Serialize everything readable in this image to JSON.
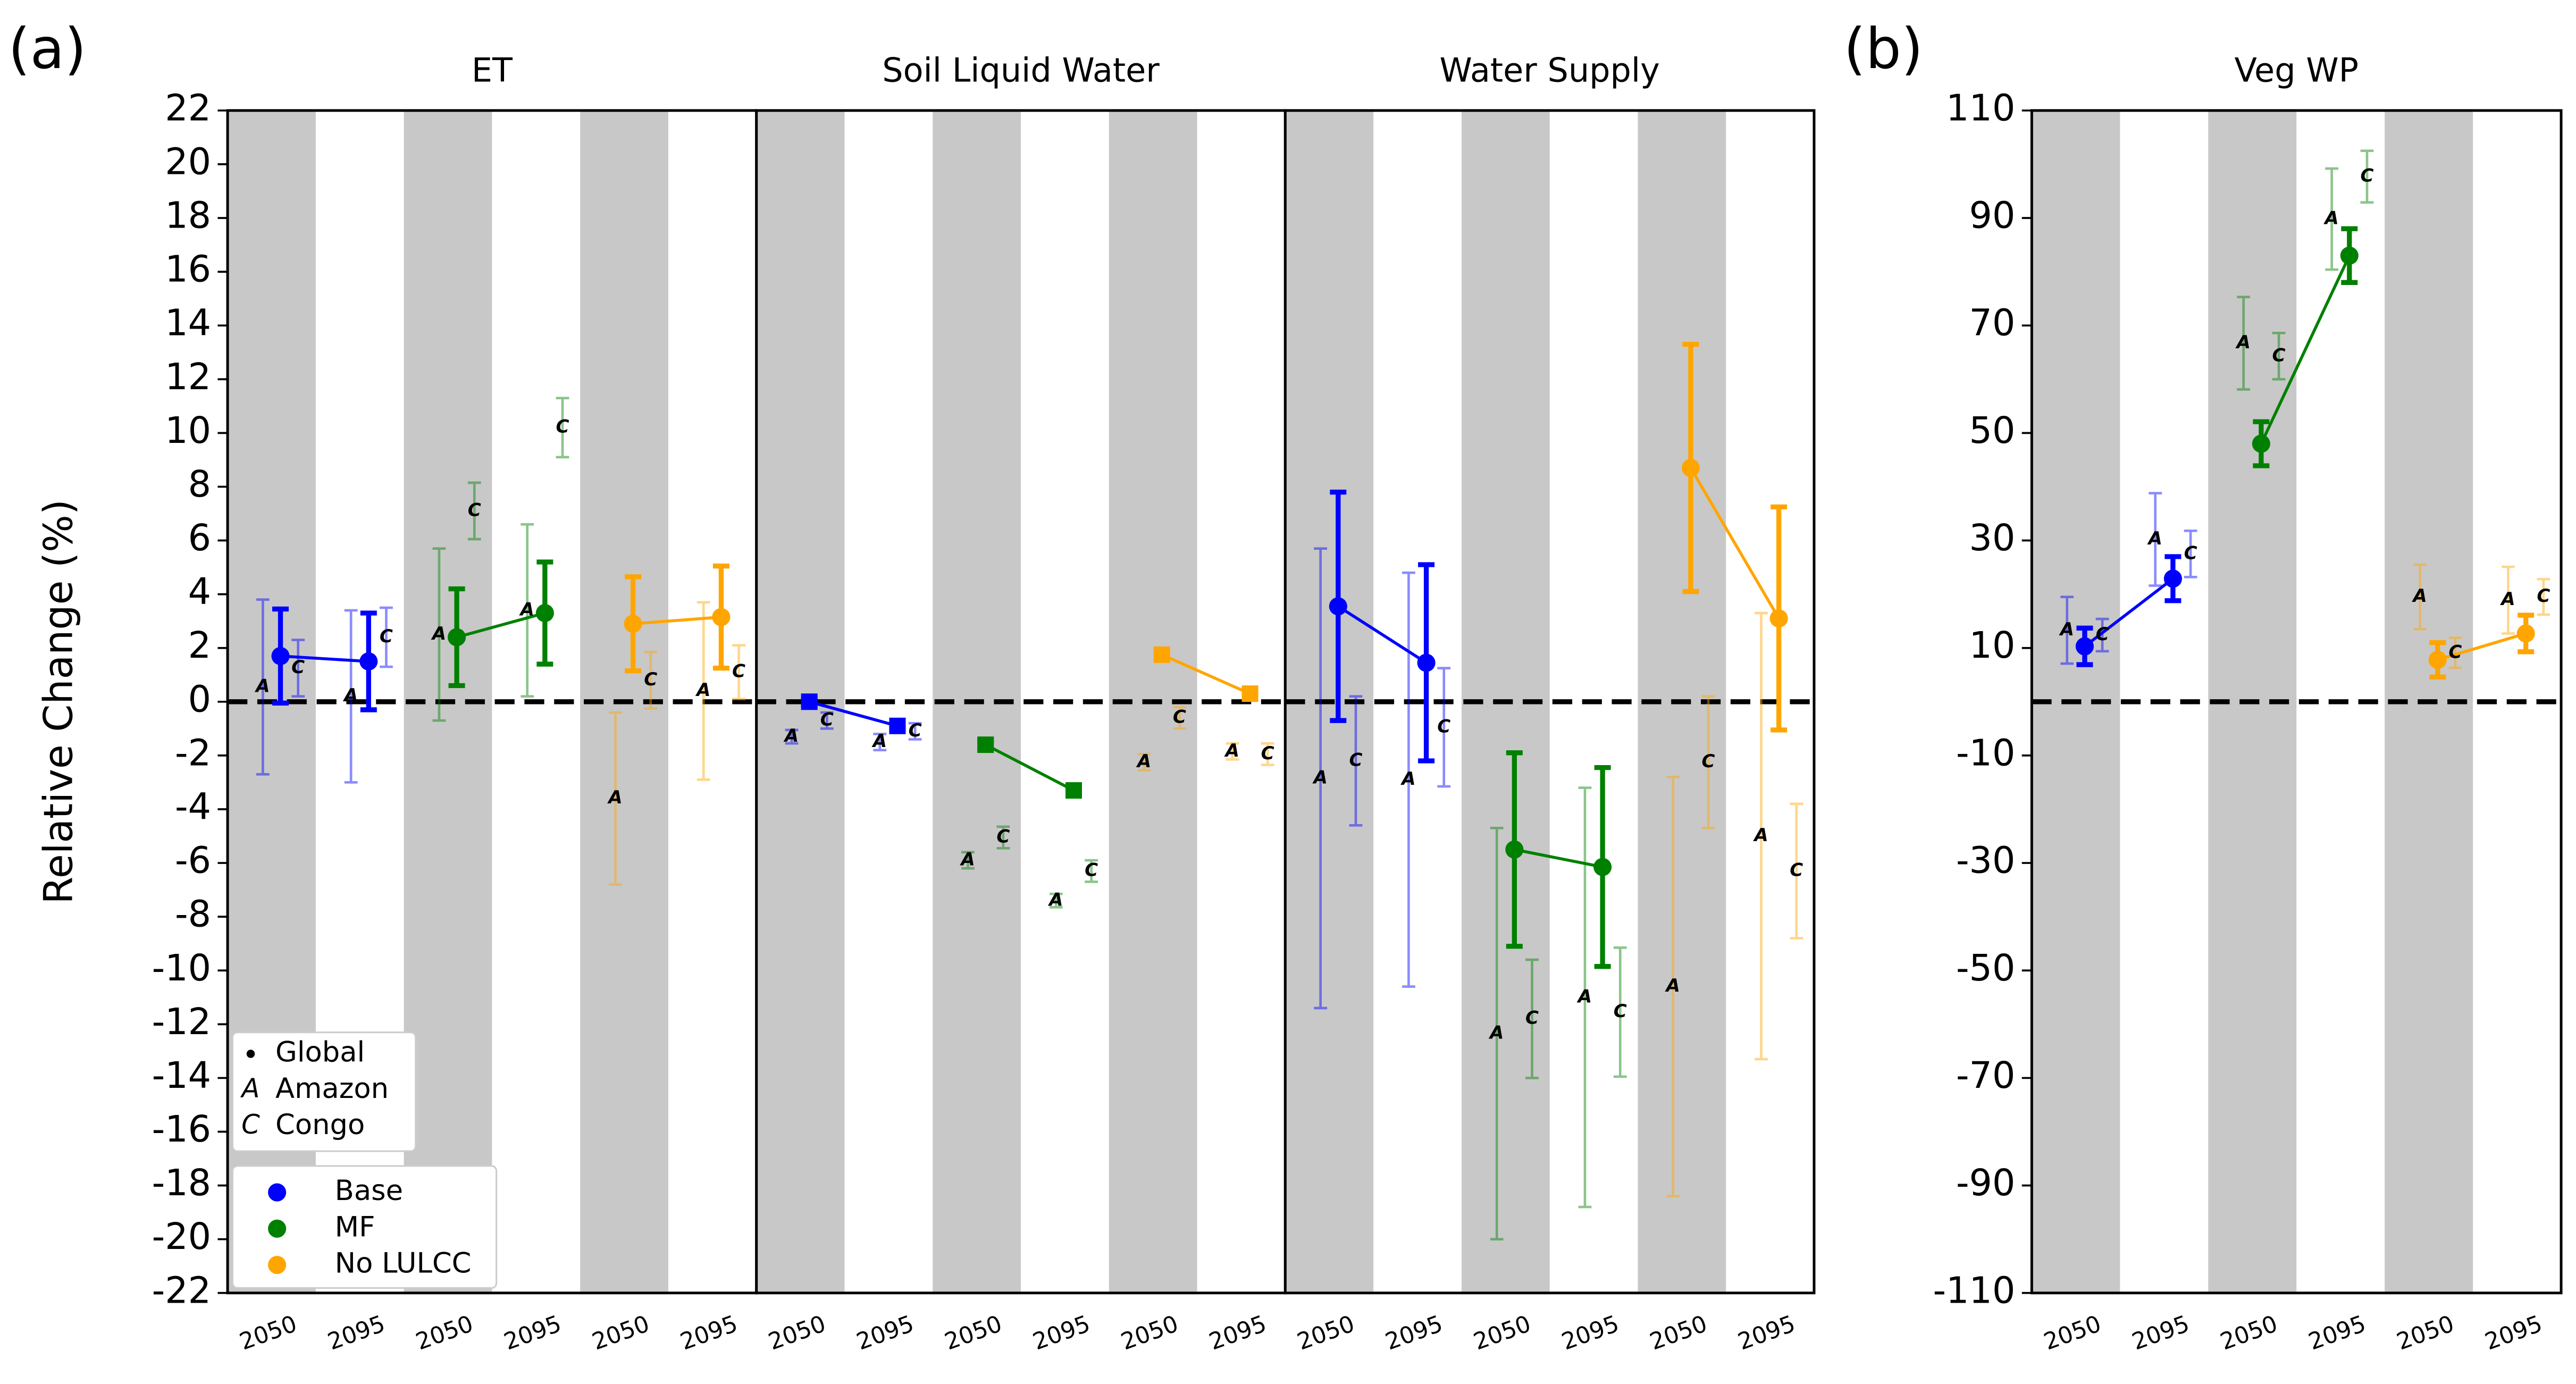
{
  "chart_data": [
    {
      "type": "errorbar",
      "label": "(a)",
      "ylabel": "Relative Change (%)",
      "ylim": [
        -22,
        22
      ],
      "yticks": [
        -22,
        -20,
        -18,
        -16,
        -14,
        -12,
        -10,
        -8,
        -6,
        -4,
        -2,
        0,
        2,
        4,
        6,
        8,
        10,
        12,
        14,
        16,
        18,
        20,
        22
      ],
      "legend": {
        "markers": [
          {
            "label": "Global"
          },
          {
            "symbol": "A",
            "label": "Amazon"
          },
          {
            "symbol": "C",
            "label": "Congo"
          }
        ],
        "series": [
          "Base",
          "MF",
          "No LULCC"
        ]
      },
      "panels": [
        {
          "title": "ET",
          "marker": "circle",
          "categories": [
            "2050",
            "2095",
            "2050",
            "2095",
            "2050",
            "2095"
          ],
          "series": [
            {
              "color": "#0000ff",
              "global": [
                1.7,
                1.5
              ],
              "global_err": [
                1.75,
                1.8
              ],
              "amazon": [
                0.55,
                0.2
              ],
              "amazon_err": [
                3.25,
                3.2
              ],
              "congo": [
                1.25,
                2.4
              ],
              "congo_err": [
                1.05,
                1.1
              ]
            },
            {
              "color": "#008000",
              "global": [
                2.4,
                3.3
              ],
              "global_err": [
                1.8,
                1.9
              ],
              "amazon": [
                2.5,
                3.4
              ],
              "amazon_err": [
                3.2,
                3.2
              ],
              "congo": [
                7.1,
                10.2
              ],
              "congo_err": [
                1.05,
                1.1
              ]
            },
            {
              "color": "#ffa500",
              "global": [
                2.9,
                3.15
              ],
              "global_err": [
                1.75,
                1.9
              ],
              "amazon": [
                -3.6,
                0.4
              ],
              "amazon_err": [
                3.2,
                3.3
              ],
              "congo": [
                0.8,
                1.1
              ],
              "congo_err": [
                1.05,
                1.0
              ]
            }
          ]
        },
        {
          "title": "Soil Liquid Water",
          "marker": "square",
          "categories": [
            "2050",
            "2095",
            "2050",
            "2095",
            "2050",
            "2095"
          ],
          "series": [
            {
              "color": "#0000ff",
              "global": [
                0.0,
                -0.9
              ],
              "global_err": [
                0.1,
                0.1
              ],
              "amazon": [
                -1.3,
                -1.5
              ],
              "amazon_err": [
                0.25,
                0.3
              ],
              "congo": [
                -0.7,
                -1.1
              ],
              "congo_err": [
                0.3,
                0.3
              ]
            },
            {
              "color": "#008000",
              "global": [
                -1.6,
                -3.3
              ],
              "global_err": [
                0.15,
                0.15
              ],
              "amazon": [
                -5.9,
                -7.4
              ],
              "amazon_err": [
                0.3,
                0.25
              ],
              "congo": [
                -5.05,
                -6.3
              ],
              "congo_err": [
                0.4,
                0.4
              ]
            },
            {
              "color": "#ffa500",
              "global": [
                1.75,
                0.3
              ],
              "global_err": [
                0.15,
                0.1
              ],
              "amazon": [
                -2.25,
                -1.85
              ],
              "amazon_err": [
                0.3,
                0.3
              ],
              "congo": [
                -0.6,
                -1.95
              ],
              "congo_err": [
                0.4,
                0.4
              ]
            }
          ]
        },
        {
          "title": "Water Supply",
          "marker": "circle",
          "categories": [
            "2050",
            "2095",
            "2050",
            "2095",
            "2050",
            "2095"
          ],
          "series": [
            {
              "color": "#0000ff",
              "global": [
                3.55,
                1.45
              ],
              "global_err": [
                4.25,
                3.65
              ],
              "amazon": [
                -2.85,
                -2.9
              ],
              "amazon_err": [
                8.55,
                7.7
              ],
              "congo": [
                -2.2,
                -0.95
              ],
              "congo_err": [
                2.4,
                2.2
              ]
            },
            {
              "color": "#008000",
              "global": [
                -5.5,
                -6.15
              ],
              "global_err": [
                3.6,
                3.7
              ],
              "amazon": [
                -12.35,
                -11.0
              ],
              "amazon_err": [
                7.65,
                7.8
              ],
              "congo": [
                -11.8,
                -11.55
              ],
              "congo_err": [
                2.2,
                2.4
              ]
            },
            {
              "color": "#ffa500",
              "global": [
                8.7,
                3.1
              ],
              "global_err": [
                4.6,
                4.15
              ],
              "amazon": [
                -10.6,
                -5.0
              ],
              "amazon_err": [
                7.8,
                8.3
              ],
              "congo": [
                -2.25,
                -6.3
              ],
              "congo_err": [
                2.45,
                2.5
              ]
            }
          ]
        }
      ]
    },
    {
      "type": "errorbar",
      "label": "(b)",
      "ylim": [
        -110,
        110
      ],
      "yticks": [
        -110,
        -90,
        -70,
        -50,
        -30,
        -10,
        10,
        30,
        50,
        70,
        90,
        110
      ],
      "panels": [
        {
          "title": "Veg WP",
          "marker": "circle",
          "categories": [
            "2050",
            "2095",
            "2050",
            "2095",
            "2050",
            "2095"
          ],
          "series": [
            {
              "color": "#0000ff",
              "global": [
                10.3,
                22.9
              ],
              "global_err": [
                3.4,
                4.1
              ],
              "amazon": [
                13.3,
                30.2
              ],
              "amazon_err": [
                6.2,
                8.6
              ],
              "congo": [
                12.4,
                27.5
              ],
              "congo_err": [
                3.0,
                4.3
              ]
            },
            {
              "color": "#008000",
              "global": [
                48.0,
                83.0
              ],
              "global_err": [
                4.1,
                5.0
              ],
              "amazon": [
                66.7,
                89.8
              ],
              "amazon_err": [
                8.6,
                9.4
              ],
              "congo": [
                64.3,
                97.7
              ],
              "congo_err": [
                4.3,
                4.8
              ]
            },
            {
              "color": "#ffa500",
              "global": [
                7.8,
                12.7
              ],
              "global_err": [
                3.2,
                3.4
              ],
              "amazon": [
                19.5,
                18.9
              ],
              "amazon_err": [
                6.0,
                6.2
              ],
              "congo": [
                9.1,
                19.5
              ],
              "congo_err": [
                2.8,
                3.3
              ]
            }
          ]
        }
      ]
    }
  ]
}
